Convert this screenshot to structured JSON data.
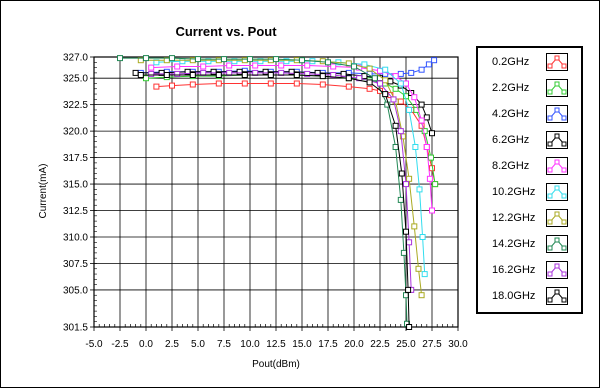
{
  "chart_data": {
    "type": "line",
    "title": "Current vs. Pout",
    "xlabel": "Pout(dBm)",
    "ylabel": "Current(mA)",
    "xlim": [
      -5.0,
      30.0
    ],
    "ylim": [
      301.5,
      327.0
    ],
    "x_ticks": [
      "-5.0",
      "-2.5",
      "0.0",
      "2.5",
      "5.0",
      "7.5",
      "10.0",
      "12.5",
      "15.0",
      "17.5",
      "20.0",
      "22.5",
      "25.0",
      "27.5",
      "30.0"
    ],
    "y_ticks": [
      "327.0",
      "325.0",
      "322.5",
      "320.0",
      "317.5",
      "315.0",
      "312.5",
      "310.0",
      "307.5",
      "305.0",
      "301.5"
    ],
    "y_tick_values": [
      327.0,
      325.0,
      322.5,
      320.0,
      317.5,
      315.0,
      312.5,
      310.0,
      307.5,
      305.0,
      301.5
    ],
    "grid": true,
    "legend_position": "right",
    "series": [
      {
        "name": "0.2GHz",
        "color": "#ff3333",
        "x": [
          1.0,
          2.5,
          4.5,
          7.0,
          9.5,
          12.0,
          14.5,
          17.0,
          19.5,
          21.5,
          22.5,
          23.5,
          24.5,
          25.5,
          26.5,
          27.0,
          27.5,
          27.8
        ],
        "y": [
          324.2,
          324.3,
          324.4,
          324.5,
          324.5,
          324.5,
          324.5,
          324.4,
          324.2,
          324.0,
          323.8,
          323.4,
          322.8,
          322.0,
          320.5,
          318.5,
          316.5,
          315.0
        ]
      },
      {
        "name": "2.2GHz",
        "color": "#33cc33",
        "x": [
          0.0,
          2.0,
          4.5,
          7.0,
          9.5,
          12.0,
          14.5,
          17.0,
          19.5,
          21.5,
          23.0,
          24.0,
          25.0,
          26.0,
          26.8,
          27.4,
          27.8
        ],
        "y": [
          325.0,
          325.1,
          325.2,
          325.2,
          325.3,
          325.3,
          325.3,
          325.2,
          325.0,
          324.8,
          324.5,
          324.0,
          323.3,
          322.0,
          320.0,
          317.5,
          315.0
        ]
      },
      {
        "name": "4.2GHz",
        "color": "#3355ff",
        "x": [
          -0.5,
          2.0,
          4.5,
          7.0,
          9.5,
          12.0,
          14.5,
          17.0,
          19.5,
          21.5,
          23.0,
          24.5,
          25.5,
          26.5,
          27.2,
          27.7
        ],
        "y": [
          325.5,
          325.6,
          325.6,
          325.6,
          325.7,
          325.6,
          325.6,
          325.5,
          325.5,
          325.4,
          325.4,
          325.4,
          325.5,
          325.8,
          326.3,
          326.7
        ]
      },
      {
        "name": "6.2GHz",
        "color": "#000000",
        "x": [
          -1.0,
          1.5,
          4.0,
          6.5,
          9.0,
          11.5,
          14.0,
          16.5,
          19.0,
          21.0,
          22.5,
          23.5,
          24.5,
          25.5,
          26.5,
          27.0,
          27.5
        ],
        "y": [
          325.5,
          325.5,
          325.6,
          325.6,
          325.6,
          325.6,
          325.6,
          325.5,
          325.4,
          325.2,
          325.0,
          324.7,
          324.3,
          323.6,
          322.5,
          321.3,
          319.8
        ]
      },
      {
        "name": "8.2GHz",
        "color": "#ff33ff",
        "x": [
          0.5,
          3.0,
          5.5,
          8.0,
          10.5,
          13.0,
          15.5,
          18.0,
          20.5,
          22.5,
          24.0,
          25.0,
          25.8,
          26.5,
          27.0,
          27.3,
          27.5
        ],
        "y": [
          326.0,
          326.1,
          326.1,
          326.2,
          326.2,
          326.2,
          326.2,
          326.1,
          326.0,
          325.7,
          325.2,
          324.5,
          323.2,
          321.0,
          318.5,
          315.5,
          312.5
        ]
      },
      {
        "name": "10.2GHz",
        "color": "#33ddee",
        "x": [
          1.0,
          3.5,
          6.0,
          8.5,
          11.0,
          13.5,
          16.0,
          18.5,
          21.0,
          23.0,
          24.5,
          25.3,
          25.9,
          26.3,
          26.6,
          26.8
        ],
        "y": [
          326.5,
          326.6,
          326.6,
          326.6,
          326.6,
          326.6,
          326.6,
          326.5,
          326.3,
          325.8,
          324.5,
          322.0,
          318.5,
          314.5,
          310.0,
          306.5
        ]
      },
      {
        "name": "12.2GHz",
        "color": "#aaaa22",
        "x": [
          -0.5,
          2.0,
          4.5,
          7.0,
          9.5,
          12.0,
          14.5,
          17.0,
          19.5,
          21.5,
          23.0,
          24.0,
          24.7,
          25.3,
          25.8,
          26.2,
          26.5
        ],
        "y": [
          326.7,
          326.7,
          326.7,
          326.7,
          326.7,
          326.7,
          326.7,
          326.6,
          326.4,
          325.9,
          324.8,
          322.8,
          319.5,
          315.5,
          311.0,
          307.0,
          304.5
        ]
      },
      {
        "name": "14.2GHz",
        "color": "#228855",
        "x": [
          -2.5,
          0.0,
          2.5,
          5.0,
          7.5,
          10.0,
          12.5,
          15.0,
          17.5,
          20.0,
          22.0,
          23.2,
          24.0,
          24.5,
          24.8,
          25.0,
          25.1
        ],
        "y": [
          326.9,
          326.9,
          326.9,
          326.8,
          326.8,
          326.8,
          326.8,
          326.7,
          326.5,
          326.1,
          325.0,
          322.5,
          318.5,
          313.5,
          308.5,
          304.5,
          301.8
        ]
      },
      {
        "name": "16.2GHz",
        "color": "#aa33dd",
        "x": [
          0.5,
          3.0,
          5.5,
          8.0,
          10.5,
          13.0,
          15.5,
          18.0,
          20.5,
          22.5,
          23.8,
          24.5,
          25.0,
          25.3,
          25.5
        ],
        "y": [
          325.4,
          325.4,
          325.5,
          325.5,
          325.5,
          325.5,
          325.4,
          325.3,
          325.0,
          324.5,
          323.0,
          320.0,
          315.0,
          309.5,
          305.0
        ]
      },
      {
        "name": "18.0GHz",
        "color": "#000000",
        "x": [
          -0.5,
          2.0,
          4.5,
          7.0,
          9.5,
          12.0,
          14.5,
          17.0,
          19.5,
          21.5,
          23.0,
          24.0,
          24.6,
          25.0,
          25.2,
          25.3
        ],
        "y": [
          325.3,
          325.3,
          325.3,
          325.3,
          325.3,
          325.3,
          325.3,
          325.2,
          325.0,
          324.6,
          323.5,
          320.5,
          316.0,
          310.5,
          305.0,
          301.5
        ]
      }
    ]
  }
}
